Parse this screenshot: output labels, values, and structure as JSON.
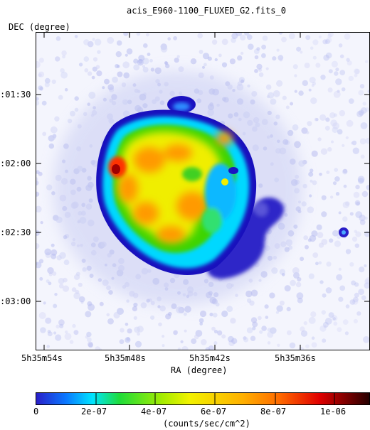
{
  "title": "acis_E960-1100_FLUXED_G2.fits_0",
  "axes": {
    "xlabel": "RA (degree)",
    "ylabel": "DEC (degree)",
    "x_ticks": [
      "5h35m54s",
      "5h35m48s",
      "5h35m42s",
      "5h35m36s"
    ],
    "y_ticks": [
      ":01:30",
      ":02:00",
      ":02:30",
      ":03:00"
    ]
  },
  "colorbar": {
    "label": "(counts/sec/cm^2)",
    "ticks": [
      "0",
      "2e-07",
      "4e-07",
      "6e-07",
      "8e-07",
      "1e-06"
    ],
    "range": [
      0,
      1.1e-06
    ]
  },
  "colors": {
    "background_halo": "#c8cdf2",
    "faint_emission": "#2a1ec8",
    "cyan": "#00e5ff",
    "green": "#27d400",
    "yellow": "#f2f200",
    "orange": "#ff9b00",
    "red": "#e40000",
    "dark_red": "#3a0000"
  }
}
